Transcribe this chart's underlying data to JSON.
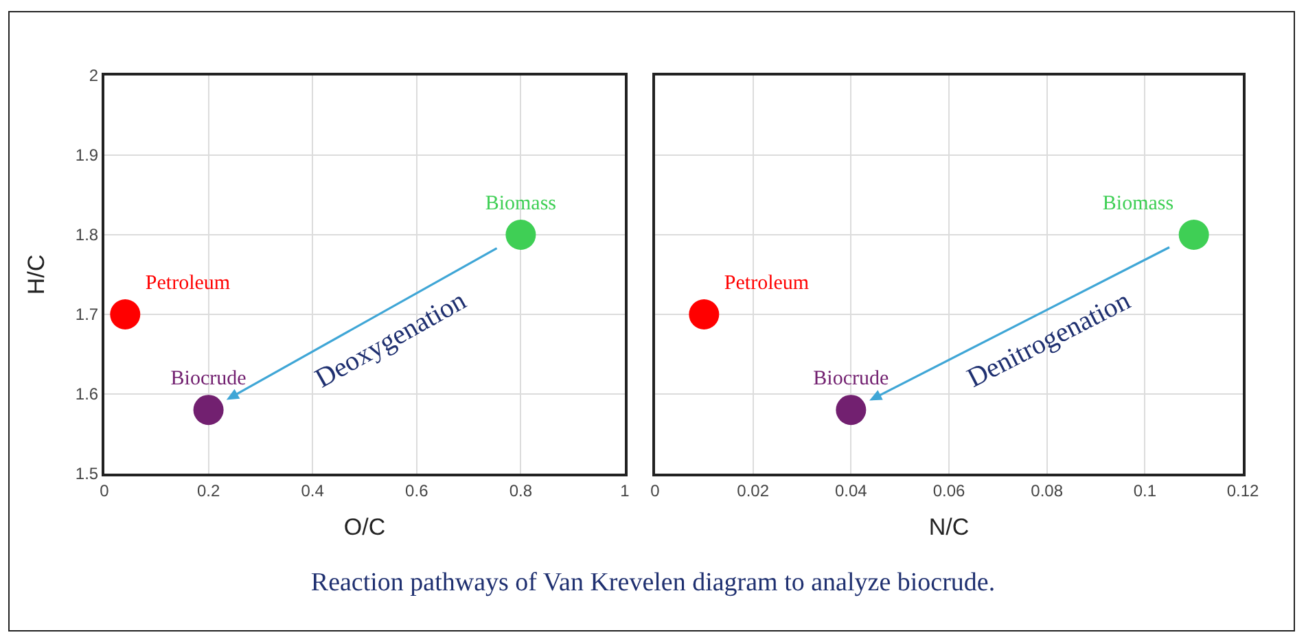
{
  "chart_data": [
    {
      "type": "scatter",
      "xlabel": "O/C",
      "ylabel": "H/C",
      "xlim": [
        0,
        1
      ],
      "xticks": [
        0,
        0.2,
        0.4,
        0.6,
        0.8,
        1
      ],
      "ylim": [
        1.5,
        2
      ],
      "yticks": [
        1.5,
        1.6,
        1.7,
        1.8,
        1.9,
        2
      ],
      "grid": true,
      "marker": "circle",
      "series": [
        {
          "name": "Petroleum",
          "color": "#ff0000",
          "x": [
            0.04
          ],
          "values": [
            1.7
          ]
        },
        {
          "name": "Biocrude",
          "color": "#722070",
          "x": [
            0.2
          ],
          "values": [
            1.58
          ]
        },
        {
          "name": "Biomass",
          "color": "#3fcf55",
          "x": [
            0.8
          ],
          "values": [
            1.8
          ]
        }
      ],
      "annotations": [
        "Deoxygenation",
        "Reaction pathways of Van Krevelen diagram to analyze biocrude."
      ]
    },
    {
      "type": "scatter",
      "xlabel": "N/C",
      "xlim": [
        0,
        0.12
      ],
      "xticks": [
        0,
        0.02,
        0.04,
        0.06,
        0.08,
        0.1,
        0.12
      ],
      "ylim": [
        1.5,
        2
      ],
      "yticks": [
        1.5,
        1.6,
        1.7,
        1.8,
        1.9,
        2
      ],
      "grid": true,
      "marker": "circle",
      "tick_labels": "x",
      "series": [
        {
          "name": "Petroleum",
          "color": "#ff0000",
          "x": [
            0.01
          ],
          "values": [
            1.7
          ]
        },
        {
          "name": "Biocrude",
          "color": "#722070",
          "x": [
            0.04
          ],
          "values": [
            1.58
          ]
        },
        {
          "name": "Biomass",
          "color": "#3fcf55",
          "x": [
            0.11
          ],
          "values": [
            1.8
          ]
        }
      ],
      "annotations": [
        "Denitrogenation"
      ]
    }
  ]
}
